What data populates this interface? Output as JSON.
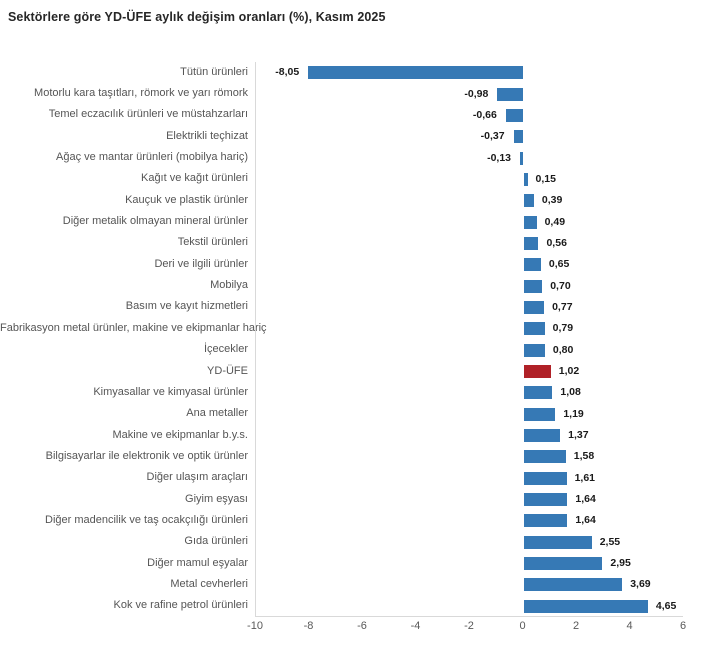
{
  "title": "Sektörlere göre YD-ÜFE aylık değişim oranları (%), Kasım 2025",
  "colors": {
    "bar": "#3679b5",
    "highlight": "#b02127",
    "axis_line": "#d9d9d9",
    "category_label": "#555555",
    "value_label": "#1a1a1a",
    "tick_label": "#595959",
    "title": "#262626"
  },
  "chart_data": {
    "type": "bar",
    "orientation": "horizontal",
    "title": "Sektörlere göre YD-ÜFE aylık değişim oranları (%), Kasım 2025",
    "categories": [
      "Tütün ürünleri",
      "Motorlu kara taşıtları, römork ve yarı römork",
      "Temel eczacılık ürünleri ve müstahzarları",
      "Elektrikli teçhizat",
      "Ağaç ve mantar ürünleri (mobilya hariç)",
      "Kağıt ve kağıt ürünleri",
      "Kauçuk ve plastik ürünler",
      "Diğer metalik olmayan mineral ürünler",
      "Tekstil ürünleri",
      "Deri ve ilgili ürünler",
      "Mobilya",
      "Basım ve kayıt hizmetleri",
      "Fabrikasyon metal ürünler, makine ve ekipmanlar hariç",
      "İçecekler",
      "YD-ÜFE",
      "Kimyasallar ve kimyasal ürünler",
      "Ana metaller",
      "Makine ve ekipmanlar b.y.s.",
      "Bilgisayarlar ile elektronik ve optik ürünler",
      "Diğer ulaşım araçları",
      "Giyim eşyası",
      "Diğer madencilik ve taş ocakçılığı ürünleri",
      "Gıda ürünleri",
      "Diğer mamul eşyalar",
      "Metal cevherleri",
      "Kok ve rafine petrol ürünleri"
    ],
    "values": [
      -8.05,
      -0.98,
      -0.66,
      -0.37,
      -0.13,
      0.15,
      0.39,
      0.49,
      0.56,
      0.65,
      0.7,
      0.77,
      0.79,
      0.8,
      1.02,
      1.08,
      1.19,
      1.37,
      1.58,
      1.61,
      1.64,
      1.64,
      2.55,
      2.95,
      3.69,
      4.65
    ],
    "value_labels": [
      "-8,05",
      "-0,98",
      "-0,66",
      "-0,37",
      "-0,13",
      "0,15",
      "0,39",
      "0,49",
      "0,56",
      "0,65",
      "0,70",
      "0,77",
      "0,79",
      "0,80",
      "1,02",
      "1,08",
      "1,19",
      "1,37",
      "1,58",
      "1,61",
      "1,64",
      "1,64",
      "2,55",
      "2,95",
      "3,69",
      "4,65"
    ],
    "highlight_category": "YD-ÜFE",
    "xlabel": "",
    "ylabel": "",
    "xlim": [
      -10,
      6
    ],
    "xticks": [
      -10,
      -8,
      -6,
      -4,
      -2,
      0,
      2,
      4,
      6
    ],
    "xtick_labels": [
      "-10",
      "-8",
      "-6",
      "-4",
      "-2",
      "0",
      "2",
      "4",
      "6"
    ],
    "grid": false,
    "legend": false
  }
}
